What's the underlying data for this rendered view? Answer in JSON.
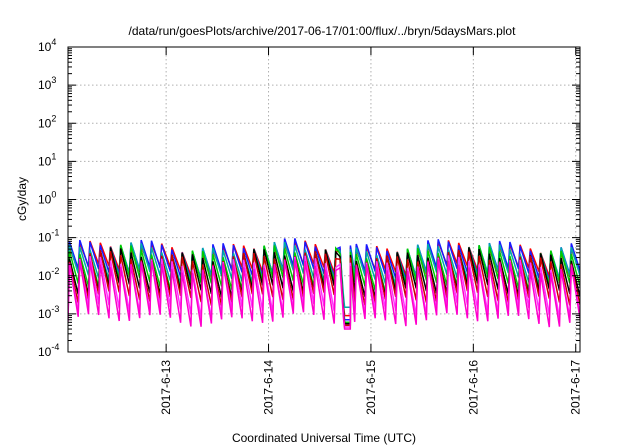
{
  "chart_data": {
    "type": "line",
    "title": "/data/run/goesPlots/archive/2017-06-17/01:00/flux/../bryn/5daysMars.plot",
    "xlabel": "Coordinated Universal Time (UTC)",
    "ylabel": "cGy/day",
    "yscale": "log",
    "ylim": [
      0.0001,
      10000
    ],
    "xlim": [
      "2017-06-12T01:00",
      "2017-06-17T01:00"
    ],
    "grid": true,
    "legend": "none",
    "x_ticks": [
      "2017-6-13",
      "2017-6-14",
      "2017-6-15",
      "2017-6-16",
      "2017-6-17"
    ],
    "y_ticks": [
      {
        "value": 0.0001,
        "base": "10",
        "exp": "-4"
      },
      {
        "value": 0.001,
        "base": "10",
        "exp": "-3"
      },
      {
        "value": 0.01,
        "base": "10",
        "exp": "-2"
      },
      {
        "value": 0.1,
        "base": "10",
        "exp": "-1"
      },
      {
        "value": 1,
        "base": "10",
        "exp": "0"
      },
      {
        "value": 10,
        "base": "10",
        "exp": "1"
      },
      {
        "value": 100,
        "base": "10",
        "exp": "2"
      },
      {
        "value": 1000,
        "base": "10",
        "exp": "3"
      },
      {
        "value": 10000,
        "base": "10",
        "exp": "4"
      }
    ],
    "cycle_hours": 2.4,
    "gap": {
      "start": "2017-06-14T16:45",
      "end": "2017-06-14T19:10"
    },
    "series": [
      {
        "color": "#ff0000",
        "peak": 0.055,
        "trough": 0.0135,
        "gap_floor": 0.0009
      },
      {
        "color": "#1a1aff",
        "peak": 0.062,
        "trough": 0.012,
        "gap_floor": 0.0007
      },
      {
        "color": "#00aaaa",
        "peak": 0.05,
        "trough": 0.009,
        "gap_floor": 0.0015
      },
      {
        "color": "#00cc00",
        "peak": 0.042,
        "trough": 0.006,
        "gap_floor": 0.0006
      },
      {
        "color": "#000000",
        "peak": 0.035,
        "trough": 0.004,
        "gap_floor": 0.00055
      },
      {
        "color": "#cc0000",
        "peak": 0.03,
        "trough": 0.0025,
        "gap_floor": 0.0005
      },
      {
        "color": "#ff33ff",
        "peak": 0.022,
        "trough": 0.0012,
        "gap_floor": 0.00045
      },
      {
        "color": "#ff00cc",
        "peak": 0.018,
        "trough": 0.0007,
        "gap_floor": 0.0004
      }
    ]
  }
}
